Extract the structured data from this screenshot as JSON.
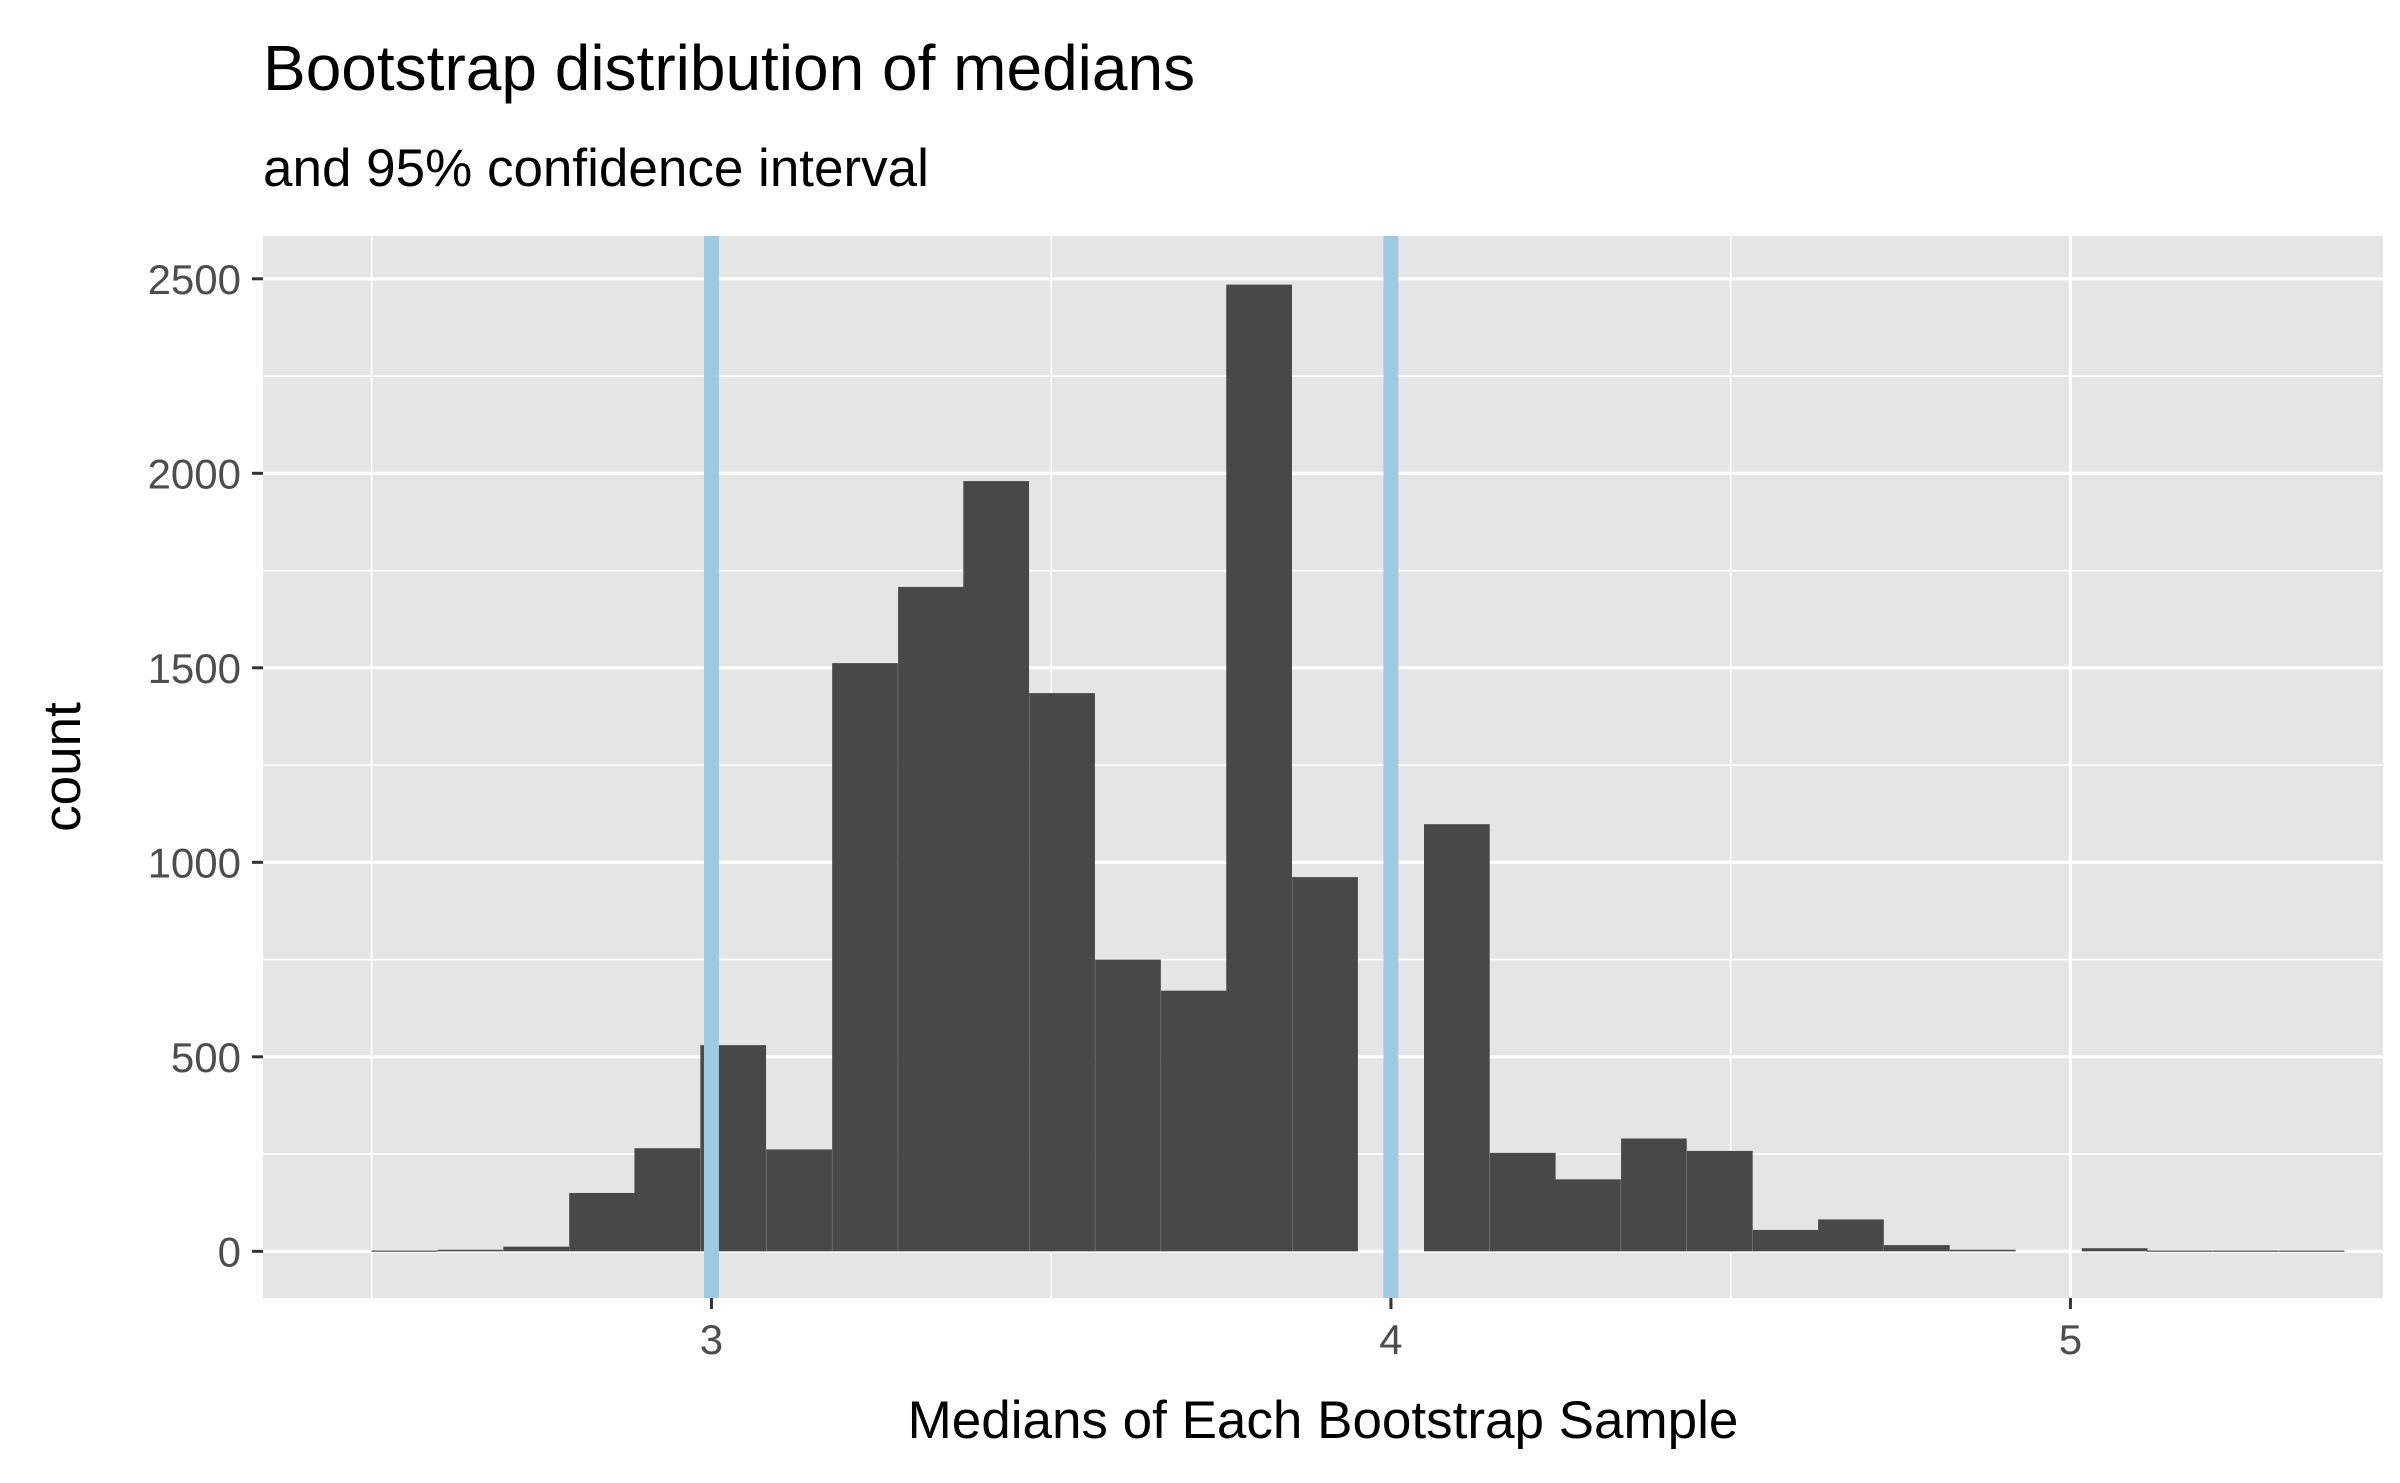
{
  "chart_data": {
    "type": "bar",
    "subtype": "histogram",
    "title": "Bootstrap distribution of medians",
    "subtitle": "and 95% confidence interval",
    "xlabel": "Medians of Each Bootstrap Sample",
    "ylabel": "count",
    "xlim": [
      2.34,
      5.46
    ],
    "ylim": [
      -120,
      2610
    ],
    "x_ticks": [
      3,
      4,
      5
    ],
    "x_minor_ticks": [
      2.5,
      3.5,
      4.5,
      5.5
    ],
    "y_ticks": [
      0,
      500,
      1000,
      1500,
      2000,
      2500
    ],
    "y_minor_ticks": [
      250,
      750,
      1250,
      1750,
      2250
    ],
    "grid": true,
    "legend": "none",
    "bin_width": 0.0967,
    "bins": [
      {
        "x": 2.548,
        "count": 2
      },
      {
        "x": 2.645,
        "count": 4
      },
      {
        "x": 2.742,
        "count": 12
      },
      {
        "x": 2.839,
        "count": 150
      },
      {
        "x": 2.935,
        "count": 265
      },
      {
        "x": 3.032,
        "count": 530
      },
      {
        "x": 3.129,
        "count": 262
      },
      {
        "x": 3.226,
        "count": 1512
      },
      {
        "x": 3.323,
        "count": 1708
      },
      {
        "x": 3.419,
        "count": 1980
      },
      {
        "x": 3.516,
        "count": 1435
      },
      {
        "x": 3.613,
        "count": 750
      },
      {
        "x": 3.71,
        "count": 670
      },
      {
        "x": 3.806,
        "count": 2485
      },
      {
        "x": 3.903,
        "count": 962
      },
      {
        "x": 4.0,
        "count": 0
      },
      {
        "x": 4.097,
        "count": 1098
      },
      {
        "x": 4.194,
        "count": 253
      },
      {
        "x": 4.29,
        "count": 185
      },
      {
        "x": 4.387,
        "count": 290
      },
      {
        "x": 4.484,
        "count": 258
      },
      {
        "x": 4.581,
        "count": 55
      },
      {
        "x": 4.677,
        "count": 82
      },
      {
        "x": 4.774,
        "count": 16
      },
      {
        "x": 4.871,
        "count": 4
      },
      {
        "x": 4.968,
        "count": 0
      },
      {
        "x": 5.065,
        "count": 8
      },
      {
        "x": 5.161,
        "count": 2
      },
      {
        "x": 5.258,
        "count": 2
      },
      {
        "x": 5.355,
        "count": 2
      }
    ],
    "ci_lines": [
      3.0,
      4.0
    ],
    "colors": {
      "panel_background": "#e5e5e5",
      "grid": "#ffffff",
      "bars": "#484848",
      "ci_line": "#9ecae1",
      "tick_label": "#4d4d4d",
      "axis_tick": "#333333"
    }
  }
}
